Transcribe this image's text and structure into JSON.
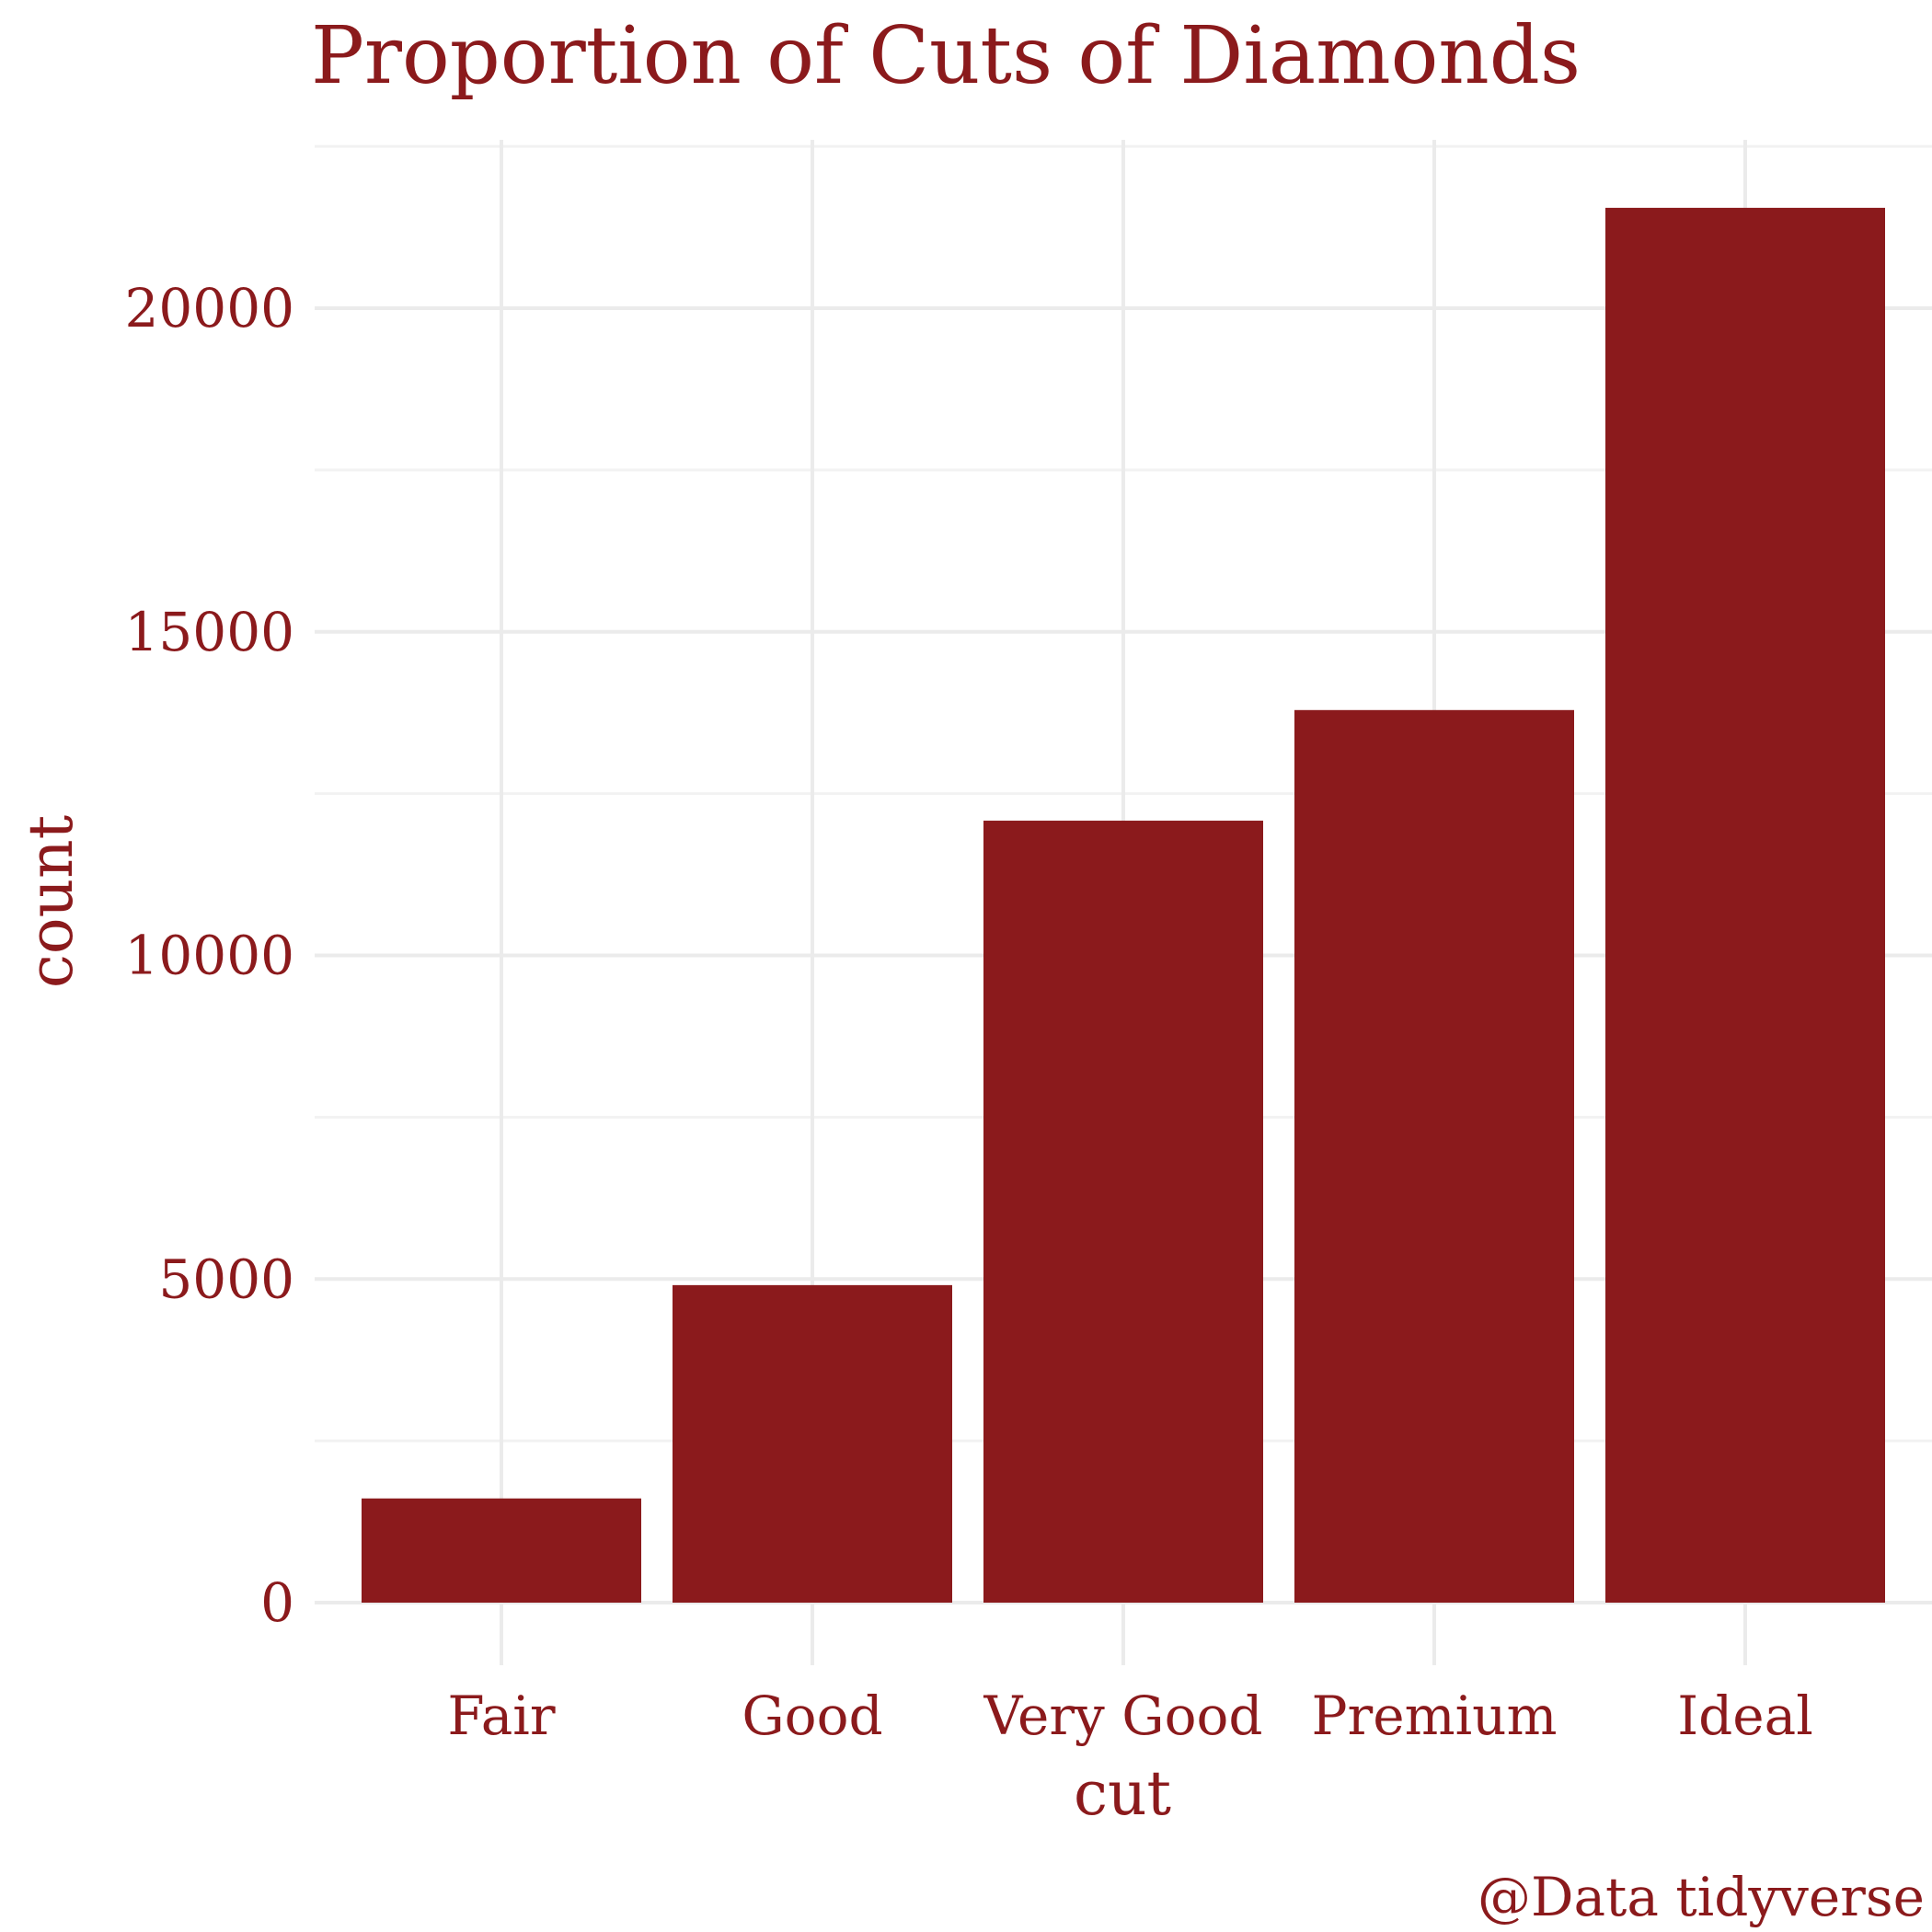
{
  "chart_data": {
    "type": "bar",
    "title": "Proportion of Cuts of Diamonds",
    "xlabel": "cut",
    "ylabel": "count",
    "caption": "@Data tidyverse",
    "categories": [
      "Fair",
      "Good",
      "Very Good",
      "Premium",
      "Ideal"
    ],
    "values": [
      1610,
      4906,
      12082,
      13791,
      21551
    ],
    "ylim": [
      0,
      22500
    ],
    "yticks": [
      0,
      5000,
      10000,
      15000,
      20000
    ],
    "ytick_labels": [
      "0",
      "5000",
      "10000",
      "15000",
      "20000"
    ],
    "grid": true,
    "legend": "none",
    "bar_color": "#8b1a1c",
    "text_color": "#8b1a1c"
  }
}
